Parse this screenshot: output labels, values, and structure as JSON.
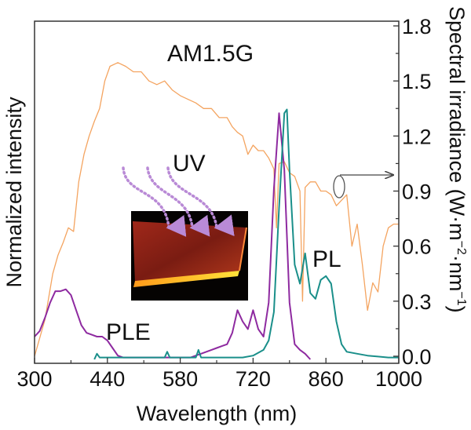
{
  "chart_data": {
    "type": "line",
    "title": "",
    "xlabel": "Wavelength (nm)",
    "ylabel_left": "Normalized intensity",
    "ylabel_right_parts": [
      "Spectral irradiance (W·m",
      "−2",
      "·nm",
      "−1",
      ")"
    ],
    "xlim": [
      300,
      1000
    ],
    "ylim_right": [
      0.0,
      1.8
    ],
    "ylim_left": [
      0,
      1.3
    ],
    "x_ticks": [
      300,
      440,
      580,
      720,
      860,
      1000
    ],
    "x_tick_labels": [
      "300",
      "440",
      "580",
      "720",
      "860",
      "1000"
    ],
    "y_right_ticks": [
      0.0,
      0.3,
      0.6,
      0.9,
      1.2,
      1.5,
      1.8
    ],
    "y_right_tick_labels": [
      "0.0",
      "0.3",
      "0.6",
      "0.9",
      "1.2",
      "1.5",
      "1.8"
    ],
    "grid": false,
    "legend": "none",
    "series": [
      {
        "name": "AM1.5G",
        "axis": "right",
        "color": "#f4a460",
        "x": [
          300,
          320,
          335,
          345,
          355,
          365,
          375,
          385,
          395,
          405,
          415,
          425,
          435,
          445,
          460,
          475,
          490,
          505,
          520,
          535,
          550,
          565,
          580,
          595,
          610,
          625,
          640,
          655,
          670,
          680,
          690,
          700,
          710,
          720,
          730,
          740,
          750,
          760,
          765,
          770,
          780,
          790,
          800,
          810,
          815,
          820,
          830,
          840,
          850,
          860,
          870,
          880,
          890,
          900,
          910,
          920,
          930,
          940,
          950,
          960,
          970,
          980,
          990,
          1000
        ],
        "y": [
          0.0,
          0.2,
          0.45,
          0.55,
          0.62,
          0.7,
          0.68,
          0.95,
          1.1,
          1.2,
          1.28,
          1.35,
          1.5,
          1.58,
          1.6,
          1.58,
          1.55,
          1.55,
          1.5,
          1.48,
          1.5,
          1.45,
          1.42,
          1.4,
          1.38,
          1.35,
          1.35,
          1.3,
          1.3,
          1.25,
          1.22,
          1.2,
          1.1,
          1.15,
          1.12,
          1.12,
          1.08,
          1.02,
          0.7,
          1.05,
          1.06,
          1.0,
          0.98,
          0.9,
          0.3,
          0.92,
          0.95,
          0.95,
          0.9,
          0.9,
          0.88,
          0.82,
          0.85,
          0.88,
          0.6,
          0.72,
          0.5,
          0.25,
          0.4,
          0.35,
          0.6,
          0.7,
          0.72,
          0.72
        ]
      },
      {
        "name": "PLE",
        "axis": "left",
        "color": "#8e2aa0",
        "x": [
          300,
          310,
          320,
          330,
          340,
          350,
          360,
          370,
          380,
          390,
          400,
          410,
          420,
          430,
          440,
          450,
          460,
          470,
          480,
          500,
          550,
          600,
          620,
          640,
          650,
          660,
          670,
          680,
          690,
          700,
          710,
          720,
          730,
          740,
          750,
          760,
          770,
          780,
          790,
          800,
          810,
          820,
          830
        ],
        "y": [
          0.12,
          0.15,
          0.22,
          0.3,
          0.36,
          0.36,
          0.37,
          0.34,
          0.26,
          0.18,
          0.14,
          0.13,
          0.12,
          0.12,
          0.1,
          0.06,
          0.02,
          0.01,
          0.01,
          0.01,
          0.01,
          0.01,
          0.03,
          0.05,
          0.06,
          0.07,
          0.08,
          0.14,
          0.26,
          0.2,
          0.16,
          0.26,
          0.16,
          0.12,
          0.3,
          0.9,
          1.3,
          1.0,
          0.3,
          0.08,
          0.05,
          0.03,
          0.0
        ]
      },
      {
        "name": "PL",
        "axis": "left",
        "color": "#1a8f8a",
        "x": [
          415,
          420,
          425,
          430,
          450,
          500,
          550,
          555,
          560,
          600,
          610,
          615,
          620,
          700,
          720,
          740,
          750,
          760,
          770,
          780,
          785,
          790,
          800,
          810,
          815,
          820,
          830,
          840,
          850,
          860,
          870,
          880,
          890,
          900,
          920,
          940,
          960,
          980,
          1000
        ],
        "y": [
          0.0,
          0.03,
          0.01,
          0.01,
          0.01,
          0.01,
          0.01,
          0.04,
          0.01,
          0.01,
          0.01,
          0.05,
          0.01,
          0.01,
          0.02,
          0.05,
          0.1,
          0.25,
          0.8,
          1.3,
          1.32,
          1.0,
          0.5,
          0.4,
          0.48,
          0.56,
          0.35,
          0.32,
          0.42,
          0.44,
          0.4,
          0.2,
          0.08,
          0.04,
          0.03,
          0.02,
          0.015,
          0.01,
          0.01
        ]
      }
    ],
    "annotations": {
      "am15g_label": "AM1.5G",
      "uv_label": "UV",
      "ple_label": "PLE",
      "pl_label": "PL",
      "arrow_to_right_axis": "AM1.5G curve → right axis",
      "inset": "photo of glowing red-orange film under UV"
    }
  }
}
